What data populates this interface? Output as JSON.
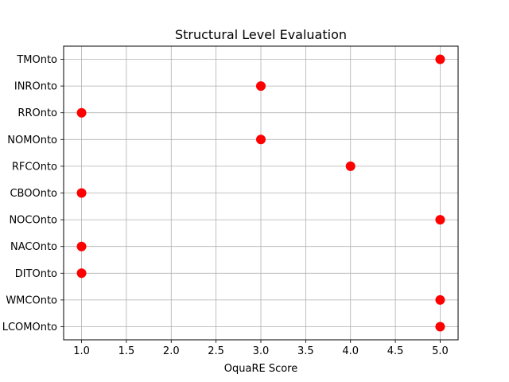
{
  "chart_data": {
    "type": "scatter",
    "title": "Structural Level Evaluation",
    "xlabel": "OquaRE Score",
    "ylabel": "",
    "xlim": [
      0.8,
      5.2
    ],
    "xticks": [
      "1.0",
      "1.5",
      "2.0",
      "2.5",
      "3.0",
      "3.5",
      "4.0",
      "4.5",
      "5.0"
    ],
    "grid": true,
    "marker_color": "#ff0000",
    "categories": [
      "TMOnto",
      "INROnto",
      "RROnto",
      "NOMOnto",
      "RFCOnto",
      "CBOOnto",
      "NOCOnto",
      "NACOnto",
      "DITOnto",
      "WMCOnto",
      "LCOMOnto"
    ],
    "values": [
      5,
      3,
      1,
      3,
      4,
      1,
      5,
      1,
      1,
      5,
      5
    ]
  }
}
